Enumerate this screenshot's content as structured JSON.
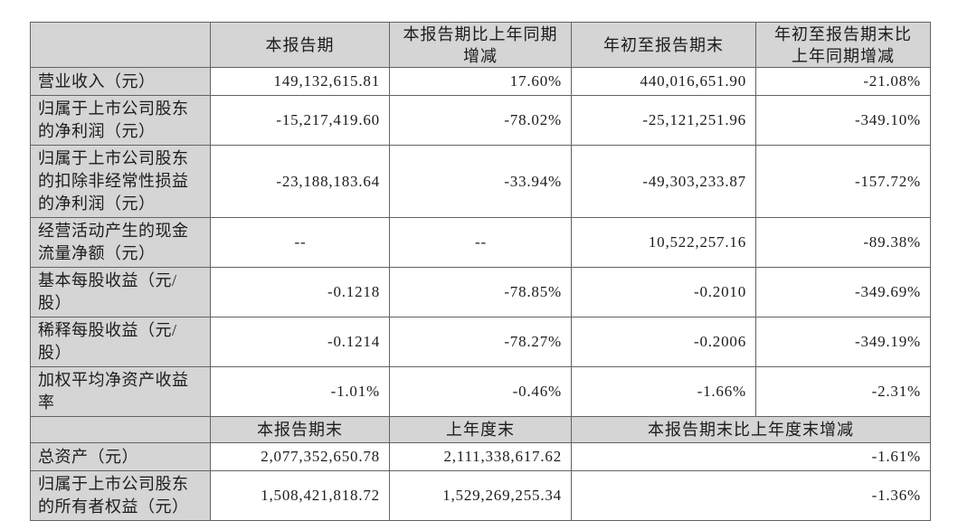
{
  "table": {
    "section1": {
      "col_headers": {
        "current_period": "本报告期",
        "yoy_change": "本报告期比上年同期增减",
        "ytd": "年初至报告期末",
        "ytd_yoy_change": "年初至报告期末比上年同期增减"
      },
      "rows": [
        {
          "label": "营业收入（元）",
          "current_period": "149,132,615.81",
          "yoy_change": "17.60%",
          "ytd": "440,016,651.90",
          "ytd_yoy_change": "-21.08%"
        },
        {
          "label": "归属于上市公司股东的净利润（元）",
          "current_period": "-15,217,419.60",
          "yoy_change": "-78.02%",
          "ytd": "-25,121,251.96",
          "ytd_yoy_change": "-349.10%"
        },
        {
          "label": "归属于上市公司股东的扣除非经常性损益的净利润（元）",
          "current_period": "-23,188,183.64",
          "yoy_change": "-33.94%",
          "ytd": "-49,303,233.87",
          "ytd_yoy_change": "-157.72%"
        },
        {
          "label": "经营活动产生的现金流量净额（元）",
          "current_period": "--",
          "yoy_change": "--",
          "ytd": "10,522,257.16",
          "ytd_yoy_change": "-89.38%"
        },
        {
          "label": "基本每股收益（元/股）",
          "current_period": "-0.1218",
          "yoy_change": "-78.85%",
          "ytd": "-0.2010",
          "ytd_yoy_change": "-349.69%"
        },
        {
          "label": "稀释每股收益（元/股）",
          "current_period": "-0.1214",
          "yoy_change": "-78.27%",
          "ytd": "-0.2006",
          "ytd_yoy_change": "-349.19%"
        },
        {
          "label": "加权平均净资产收益率",
          "current_period": "-1.01%",
          "yoy_change": "-0.46%",
          "ytd": "-1.66%",
          "ytd_yoy_change": "-2.31%"
        }
      ]
    },
    "section2": {
      "col_headers": {
        "end_of_period": "本报告期末",
        "end_of_prior_year": "上年度末",
        "change": "本报告期末比上年度末增减"
      },
      "rows": [
        {
          "label": "总资产（元）",
          "end_of_period": "2,077,352,650.78",
          "end_of_prior_year": "2,111,338,617.62",
          "change": "-1.61%"
        },
        {
          "label": "归属于上市公司股东的所有者权益（元）",
          "end_of_period": "1,508,421,818.72",
          "end_of_prior_year": "1,529,269,255.34",
          "change": "-1.36%"
        }
      ]
    }
  }
}
